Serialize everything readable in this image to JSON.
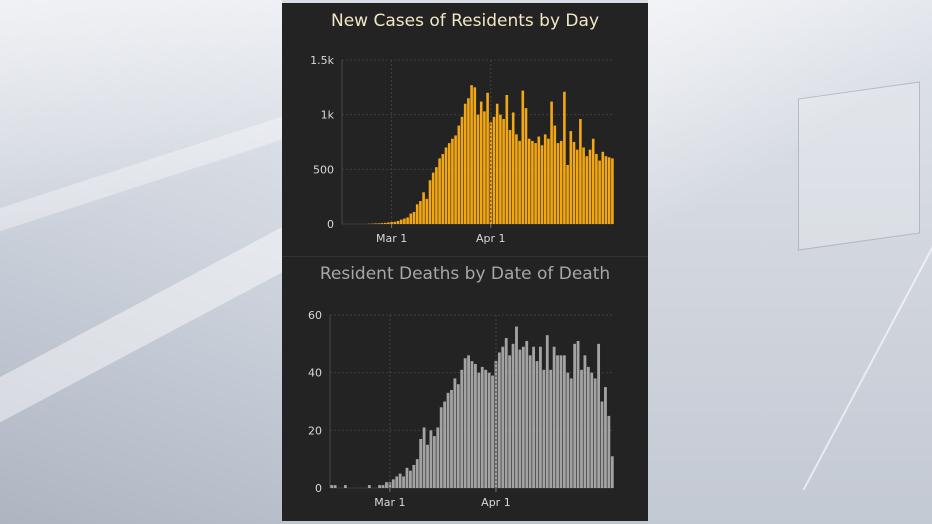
{
  "chart_data": [
    {
      "type": "bar",
      "title": "New Cases of Residents by Day",
      "xlabel": "",
      "ylabel": "",
      "ylim": [
        0,
        1500
      ],
      "yticks": [
        0,
        500,
        1000,
        1500
      ],
      "ytick_labels": [
        "0",
        "500",
        "1k",
        "1.5k"
      ],
      "xticks": [
        {
          "index": 15,
          "label": "Mar 1"
        },
        {
          "index": 46,
          "label": "Apr 1"
        }
      ],
      "grid": true,
      "bar_color": "#f3a712",
      "values": [
        0,
        0,
        0,
        0,
        0,
        0,
        0,
        0,
        2,
        3,
        5,
        6,
        8,
        10,
        14,
        18,
        20,
        28,
        40,
        50,
        60,
        95,
        110,
        180,
        210,
        290,
        230,
        400,
        470,
        520,
        600,
        640,
        700,
        740,
        780,
        810,
        900,
        980,
        1100,
        1150,
        1270,
        1250,
        1000,
        1120,
        1030,
        1200,
        930,
        980,
        1100,
        1000,
        960,
        1180,
        860,
        1020,
        820,
        760,
        1220,
        1060,
        780,
        760,
        740,
        800,
        720,
        820,
        780,
        1120,
        900,
        740,
        760,
        1210,
        540,
        850,
        750,
        680,
        960,
        700,
        620,
        680,
        780,
        640,
        580,
        660,
        620,
        610,
        600
      ]
    },
    {
      "type": "bar",
      "title": "Resident Deaths by Date of Death",
      "xlabel": "",
      "ylabel": "",
      "ylim": [
        0,
        60
      ],
      "yticks": [
        0,
        20,
        40,
        60
      ],
      "ytick_labels": [
        "0",
        "20",
        "40",
        "60"
      ],
      "xticks": [
        {
          "index": 17,
          "label": "Mar 1"
        },
        {
          "index": 48,
          "label": "Apr 1"
        }
      ],
      "grid": true,
      "bar_color": "#a3a3a3",
      "values": [
        1,
        1,
        0,
        0,
        1,
        0,
        0,
        0,
        0,
        0,
        0,
        1,
        0,
        0,
        1,
        1,
        2,
        2,
        3,
        4,
        5,
        4,
        7,
        6,
        8,
        10,
        17,
        21,
        15,
        20,
        18,
        21,
        28,
        30,
        33,
        34,
        38,
        36,
        41,
        45,
        46,
        44,
        43,
        40,
        42,
        41,
        40,
        39,
        44,
        47,
        49,
        52,
        46,
        50,
        56,
        48,
        49,
        51,
        46,
        49,
        44,
        49,
        41,
        53,
        41,
        49,
        46,
        46,
        46,
        40,
        38,
        50,
        51,
        41,
        46,
        42,
        40,
        38,
        50,
        30,
        35,
        25,
        11
      ]
    }
  ]
}
